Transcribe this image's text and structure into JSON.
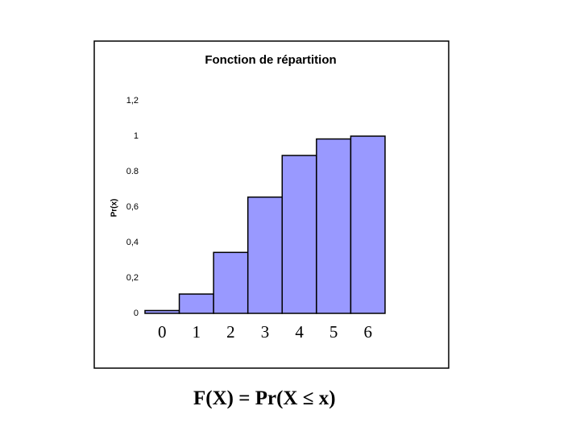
{
  "chart_data": {
    "type": "bar",
    "title": "Fonction de répartition",
    "y_label": "Pr(x)",
    "categories": [
      "0",
      "1",
      "2",
      "3",
      "4",
      "5",
      "6"
    ],
    "values": [
      0.016,
      0.109,
      0.344,
      0.656,
      0.891,
      0.984,
      1
    ],
    "color": "#9999ff",
    "ylim": [
      0,
      1.2
    ],
    "yticks": [
      0,
      {
        "value": 0.2,
        "label": "0,2"
      },
      {
        "value": 0.4,
        "label": "0,4"
      },
      {
        "value": 0.6,
        "label": "0,6"
      },
      0.8,
      1,
      {
        "value": 1.2,
        "label": "1,2"
      }
    ]
  },
  "caption": "F(X) = Pr(X ≤ x)"
}
